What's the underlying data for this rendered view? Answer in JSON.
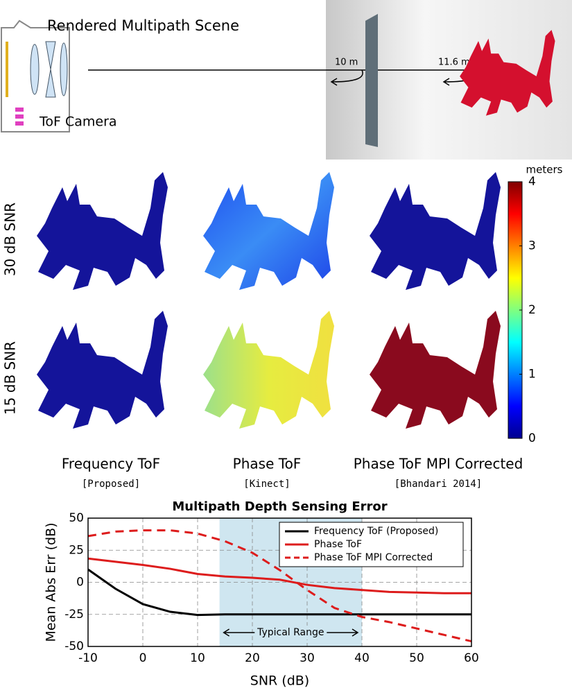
{
  "scene": {
    "title": "Rendered Multipath Scene",
    "camera_label": "ToF Camera",
    "wall_distance": "10 m",
    "object_distance": "11.6 m"
  },
  "row_labels": [
    "30 dB SNR",
    "15 dB SNR"
  ],
  "columns": [
    {
      "title": "Frequency ToF",
      "note": "[Proposed]"
    },
    {
      "title": "Phase ToF",
      "note": "[Kinect]"
    },
    {
      "title": "Phase ToF MPI Corrected",
      "note": "[Bhandari 2014]"
    }
  ],
  "colorbar": {
    "label": "meters",
    "lim": [
      0,
      4
    ],
    "ticks": [
      0,
      1,
      2,
      3,
      4
    ]
  },
  "chart_data": {
    "type": "line",
    "title": "Multipath Depth Sensing Error",
    "x_label": "SNR (dB)",
    "y_label": "Mean Abs Err (dB)",
    "x": [
      -10,
      -5,
      0,
      5,
      10,
      15,
      20,
      25,
      30,
      35,
      40,
      45,
      50,
      55,
      60
    ],
    "series": [
      {
        "name": "Frequency ToF (Proposed)",
        "color": "#000000",
        "linestyle": "solid",
        "values": [
          10,
          -5,
          -17,
          -23,
          -25.5,
          -25,
          -25,
          -25,
          -25,
          -25,
          -25,
          -25,
          -25,
          -25,
          -25
        ]
      },
      {
        "name": "Phase ToF",
        "color": "#dd1c1c",
        "linestyle": "solid",
        "values": [
          18.5,
          16,
          13.5,
          10.5,
          6.5,
          4.5,
          3.5,
          2,
          -2,
          -4.5,
          -6,
          -7.5,
          -8,
          -8.5,
          -8.5
        ]
      },
      {
        "name": "Phase ToF MPI Corrected",
        "color": "#dd1c1c",
        "linestyle": "dashed",
        "values": [
          36,
          39.5,
          40.5,
          40.5,
          38,
          32,
          23,
          9.5,
          -6,
          -20,
          -27,
          -31,
          -36,
          -41,
          -46
        ]
      }
    ],
    "xlim": [
      -10,
      60
    ],
    "ylim": [
      -50,
      50
    ],
    "xticks": [
      -10,
      0,
      10,
      20,
      30,
      40,
      50,
      60
    ],
    "yticks": [
      -50,
      -25,
      0,
      25,
      50
    ],
    "grid": true,
    "legend": "upper right",
    "shaded_range": [
      14,
      40
    ],
    "shaded_color": "#cfe6f0",
    "annotation": "Typical Range"
  }
}
